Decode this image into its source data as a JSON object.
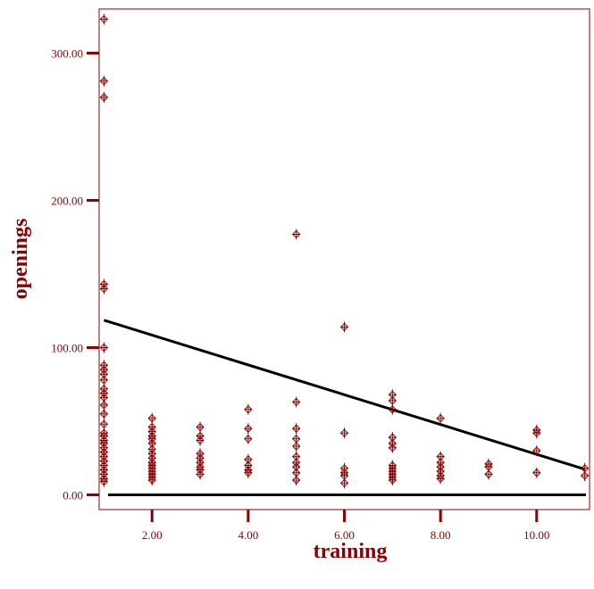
{
  "chart_data": {
    "type": "scatter",
    "title": "",
    "xlabel": "training",
    "ylabel": "openings",
    "xlim": [
      0.9,
      11.1
    ],
    "ylim": [
      -10,
      330
    ],
    "x_ticks": [
      2,
      4,
      6,
      8,
      10
    ],
    "y_ticks": [
      0,
      100,
      200,
      300
    ],
    "x_tick_labels": [
      "2.00",
      "4.00",
      "6.00",
      "8.00",
      "10.00"
    ],
    "y_tick_labels": [
      "0.00",
      "100.00",
      "200.00",
      "300.00"
    ],
    "grid": false,
    "legend": "none",
    "colors": {
      "points": "#8b0000",
      "axes": "#8b0000",
      "lines": "#000000",
      "frame": "#8b0000"
    },
    "points": [
      [
        1,
        323
      ],
      [
        1,
        281
      ],
      [
        1,
        270
      ],
      [
        1,
        143
      ],
      [
        1,
        140
      ],
      [
        1,
        100
      ],
      [
        1,
        88
      ],
      [
        1,
        85
      ],
      [
        1,
        82
      ],
      [
        1,
        78
      ],
      [
        1,
        72
      ],
      [
        1,
        69
      ],
      [
        1,
        66
      ],
      [
        1,
        61
      ],
      [
        1,
        55
      ],
      [
        1,
        48
      ],
      [
        1,
        42
      ],
      [
        1,
        40
      ],
      [
        1,
        37
      ],
      [
        1,
        35
      ],
      [
        1,
        32
      ],
      [
        1,
        29
      ],
      [
        1,
        26
      ],
      [
        1,
        23
      ],
      [
        1,
        20
      ],
      [
        1,
        17
      ],
      [
        1,
        14
      ],
      [
        1,
        11
      ],
      [
        1,
        9
      ],
      [
        2,
        52
      ],
      [
        2,
        46
      ],
      [
        2,
        43
      ],
      [
        2,
        40
      ],
      [
        2,
        38
      ],
      [
        2,
        35
      ],
      [
        2,
        31
      ],
      [
        2,
        28
      ],
      [
        2,
        25
      ],
      [
        2,
        22
      ],
      [
        2,
        20
      ],
      [
        2,
        18
      ],
      [
        2,
        16
      ],
      [
        2,
        14
      ],
      [
        2,
        12
      ],
      [
        2,
        10
      ],
      [
        3,
        46
      ],
      [
        3,
        40
      ],
      [
        3,
        37
      ],
      [
        3,
        28
      ],
      [
        3,
        25
      ],
      [
        3,
        22
      ],
      [
        3,
        19
      ],
      [
        3,
        17
      ],
      [
        3,
        14
      ],
      [
        4,
        58
      ],
      [
        4,
        45
      ],
      [
        4,
        38
      ],
      [
        4,
        24
      ],
      [
        4,
        20
      ],
      [
        4,
        17
      ],
      [
        4,
        15
      ],
      [
        5,
        177
      ],
      [
        5,
        63
      ],
      [
        5,
        45
      ],
      [
        5,
        38
      ],
      [
        5,
        33
      ],
      [
        5,
        26
      ],
      [
        5,
        22
      ],
      [
        5,
        19
      ],
      [
        5,
        15
      ],
      [
        5,
        10
      ],
      [
        6,
        114
      ],
      [
        6,
        42
      ],
      [
        6,
        18
      ],
      [
        6,
        15
      ],
      [
        6,
        13
      ],
      [
        6,
        8
      ],
      [
        7,
        68
      ],
      [
        7,
        64
      ],
      [
        7,
        58
      ],
      [
        7,
        39
      ],
      [
        7,
        35
      ],
      [
        7,
        32
      ],
      [
        7,
        20
      ],
      [
        7,
        18
      ],
      [
        7,
        16
      ],
      [
        7,
        14
      ],
      [
        7,
        12
      ],
      [
        7,
        10
      ],
      [
        8,
        52
      ],
      [
        8,
        26
      ],
      [
        8,
        22
      ],
      [
        8,
        19
      ],
      [
        8,
        16
      ],
      [
        8,
        13
      ],
      [
        8,
        11
      ],
      [
        9,
        21
      ],
      [
        9,
        19
      ],
      [
        9,
        14
      ],
      [
        10,
        44
      ],
      [
        10,
        42
      ],
      [
        10,
        30
      ],
      [
        10,
        15
      ],
      [
        11,
        18
      ],
      [
        11,
        13
      ]
    ],
    "fit_line": {
      "x": [
        1,
        11
      ],
      "y": [
        118.6,
        17.4
      ]
    },
    "reference_line": {
      "y": 0
    }
  }
}
